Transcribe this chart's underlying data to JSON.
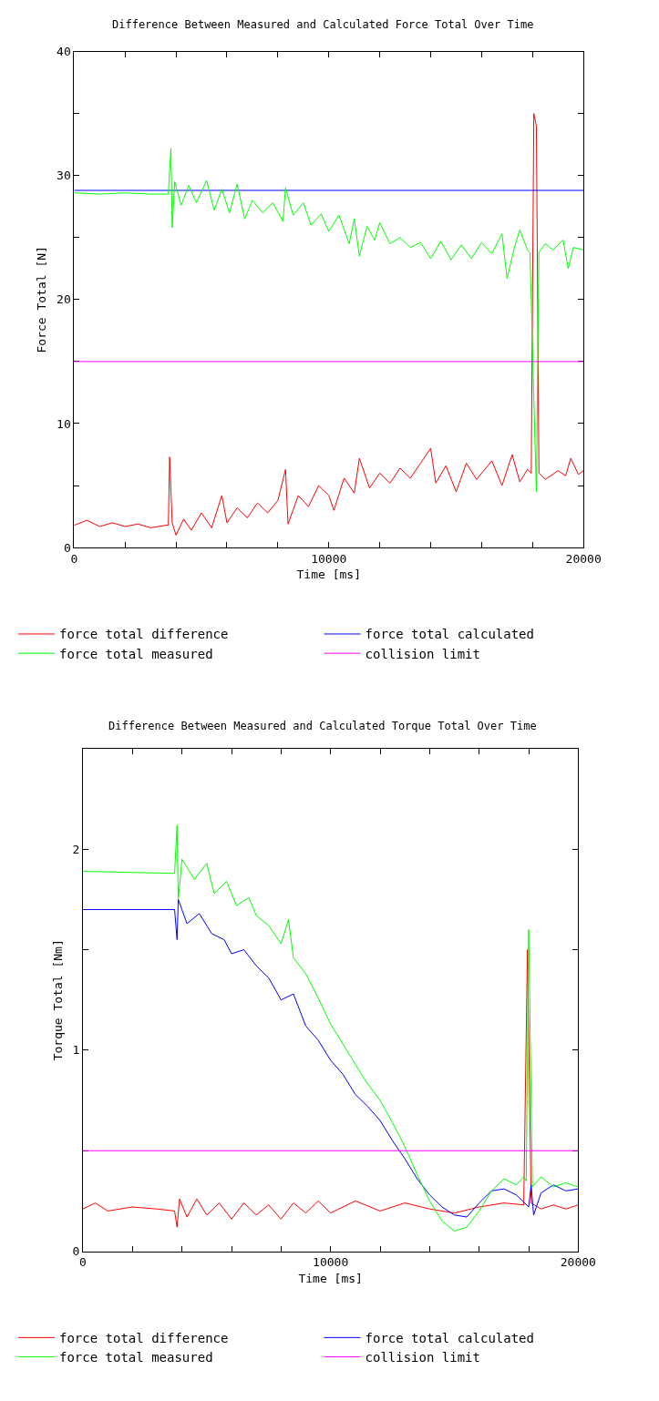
{
  "chart_data": [
    {
      "type": "line",
      "title": "Difference Between Measured and Calculated Force Total Over Time",
      "xlabel": "Time [ms]",
      "ylabel": "Force Total [N]",
      "xlim": [
        0,
        20000
      ],
      "xticks": [
        0,
        {
          "value": 2000,
          "label": null
        },
        {
          "value": 4000,
          "label": null
        },
        {
          "value": 6000,
          "label": null
        },
        {
          "value": 8000,
          "label": null
        },
        10000,
        {
          "value": 12000,
          "label": null
        },
        {
          "value": 14000,
          "label": null
        },
        {
          "value": 16000,
          "label": null
        },
        {
          "value": 18000,
          "label": null
        },
        20000
      ],
      "ylim": [
        0,
        40
      ],
      "yticks": [
        0,
        {
          "value": 5,
          "label": null
        },
        10,
        {
          "value": 15,
          "label": null
        },
        20,
        {
          "value": 25,
          "label": null
        },
        30,
        {
          "value": 35,
          "label": null
        },
        40
      ],
      "legend": "bottom",
      "series": [
        {
          "name": "force total difference",
          "color": "#ff0000",
          "x": [
            0,
            500,
            1000,
            1500,
            2000,
            2500,
            3000,
            3600,
            3700,
            3750,
            3850,
            4000,
            4300,
            4600,
            5000,
            5400,
            5800,
            6000,
            6400,
            6800,
            7200,
            7600,
            8000,
            8300,
            8400,
            8800,
            9200,
            9600,
            10000,
            10200,
            10600,
            11000,
            11200,
            11600,
            12000,
            12400,
            12800,
            13200,
            13600,
            14000,
            14200,
            14600,
            15000,
            15400,
            15800,
            16400,
            16800,
            17200,
            17500,
            17800,
            17950,
            18050,
            18150,
            18250,
            18500,
            19000,
            19300,
            19500,
            19800,
            20000
          ],
          "values": [
            1.8,
            2.2,
            1.7,
            2.0,
            1.7,
            1.9,
            1.6,
            1.8,
            1.8,
            7.3,
            2.0,
            1.0,
            2.3,
            1.4,
            2.8,
            1.6,
            4.2,
            2.0,
            3.2,
            2.4,
            3.6,
            2.8,
            3.8,
            6.3,
            1.9,
            4.2,
            3.3,
            5.0,
            4.2,
            3.0,
            5.6,
            4.4,
            7.2,
            4.8,
            6.0,
            5.2,
            6.4,
            5.6,
            6.8,
            8.0,
            5.2,
            6.6,
            4.5,
            6.8,
            5.5,
            7.0,
            5.0,
            7.5,
            5.3,
            6.3,
            6.0,
            35.0,
            34.0,
            6.0,
            5.5,
            6.2,
            5.8,
            7.2,
            5.9,
            6.2
          ]
        },
        {
          "name": "force total calculated",
          "color": "#0000ff",
          "x": [
            0,
            20000
          ],
          "values": [
            28.8,
            28.8
          ]
        },
        {
          "name": "force total measured",
          "color": "#00ff00",
          "x": [
            0,
            1000,
            2000,
            3000,
            3700,
            3800,
            3850,
            3950,
            4200,
            4500,
            4800,
            5200,
            5500,
            5800,
            6100,
            6400,
            6700,
            7000,
            7400,
            7800,
            8200,
            8300,
            8600,
            9000,
            9300,
            9700,
            10000,
            10400,
            10800,
            11000,
            11200,
            11500,
            11800,
            12000,
            12400,
            12800,
            13200,
            13600,
            14000,
            14400,
            14800,
            15200,
            15600,
            16000,
            16400,
            16800,
            17000,
            17300,
            17500,
            17800,
            17900,
            18050,
            18150,
            18250,
            18500,
            18800,
            19200,
            19400,
            19600,
            20000
          ],
          "values": [
            28.6,
            28.5,
            28.6,
            28.5,
            28.5,
            32.2,
            25.8,
            29.5,
            27.6,
            29.2,
            27.8,
            29.6,
            27.2,
            28.9,
            27.0,
            29.3,
            26.5,
            28.0,
            27.0,
            27.8,
            26.3,
            29.0,
            26.8,
            27.8,
            26.0,
            26.9,
            25.5,
            26.8,
            24.5,
            26.5,
            23.5,
            25.9,
            24.8,
            26.2,
            24.5,
            25.0,
            24.2,
            24.6,
            23.3,
            24.7,
            23.2,
            24.4,
            23.3,
            24.6,
            23.7,
            25.3,
            21.7,
            24.3,
            25.6,
            24.0,
            23.8,
            12.0,
            4.5,
            23.8,
            24.5,
            24.0,
            24.8,
            22.5,
            24.2,
            24.0
          ]
        },
        {
          "name": "collision limit",
          "color": "#ff00ff",
          "x": [
            0,
            20000
          ],
          "values": [
            15,
            15
          ]
        }
      ]
    },
    {
      "type": "line",
      "title": "Difference Between Measured and Calculated Torque Total Over Time",
      "xlabel": "Time [ms]",
      "ylabel": "Torque Total [Nm]",
      "xlim": [
        0,
        20000
      ],
      "xticks": [
        0,
        {
          "value": 2000,
          "label": null
        },
        {
          "value": 4000,
          "label": null
        },
        {
          "value": 6000,
          "label": null
        },
        {
          "value": 8000,
          "label": null
        },
        10000,
        {
          "value": 12000,
          "label": null
        },
        {
          "value": 14000,
          "label": null
        },
        {
          "value": 16000,
          "label": null
        },
        {
          "value": 18000,
          "label": null
        },
        20000
      ],
      "ylim": [
        0,
        2.5
      ],
      "yticks": [
        0,
        {
          "value": 0.5,
          "label": null
        },
        1,
        {
          "value": 1.5,
          "label": null
        },
        2,
        {
          "value": 2.5,
          "label": null
        }
      ],
      "legend": "bottom",
      "series": [
        {
          "name": "force total difference",
          "color": "#ff0000",
          "x": [
            0,
            500,
            1000,
            2000,
            3000,
            3700,
            3800,
            3900,
            4200,
            4600,
            5000,
            5500,
            6000,
            6500,
            7000,
            7500,
            8000,
            8500,
            9000,
            9500,
            10000,
            11000,
            12000,
            13000,
            14000,
            15000,
            16000,
            17000,
            17800,
            17950,
            18100,
            18500,
            19000,
            19500,
            20000
          ],
          "values": [
            0.21,
            0.24,
            0.2,
            0.22,
            0.21,
            0.2,
            0.12,
            0.26,
            0.17,
            0.26,
            0.18,
            0.24,
            0.16,
            0.24,
            0.18,
            0.23,
            0.16,
            0.24,
            0.19,
            0.25,
            0.19,
            0.25,
            0.2,
            0.24,
            0.21,
            0.19,
            0.22,
            0.24,
            0.23,
            1.5,
            0.24,
            0.21,
            0.23,
            0.21,
            0.23
          ]
        },
        {
          "name": "force total calculated",
          "color": "#0000ff",
          "x": [
            0,
            3700,
            3800,
            3850,
            4200,
            4700,
            5200,
            5700,
            6000,
            6500,
            7000,
            7500,
            8000,
            8500,
            9000,
            9500,
            10000,
            10500,
            11000,
            11500,
            12000,
            12500,
            13000,
            13500,
            14000,
            14500,
            15000,
            15500,
            16000,
            16500,
            17000,
            17500,
            18000,
            18100,
            18200,
            18500,
            19000,
            19500,
            20000
          ],
          "values": [
            1.7,
            1.7,
            1.55,
            1.75,
            1.63,
            1.68,
            1.58,
            1.55,
            1.48,
            1.5,
            1.42,
            1.36,
            1.25,
            1.28,
            1.12,
            1.05,
            0.95,
            0.88,
            0.78,
            0.72,
            0.65,
            0.55,
            0.46,
            0.36,
            0.28,
            0.22,
            0.18,
            0.17,
            0.24,
            0.3,
            0.31,
            0.28,
            0.22,
            0.33,
            0.18,
            0.29,
            0.33,
            0.3,
            0.31
          ]
        },
        {
          "name": "force total measured",
          "color": "#00ff00",
          "x": [
            0,
            3700,
            3800,
            3850,
            4000,
            4500,
            5000,
            5300,
            5800,
            6200,
            6700,
            7000,
            7500,
            8000,
            8300,
            8500,
            9000,
            9500,
            10000,
            10500,
            11000,
            11400,
            12000,
            12500,
            13000,
            13500,
            14000,
            14500,
            15000,
            15500,
            16000,
            16500,
            17000,
            17500,
            17800,
            17900,
            18000,
            18150,
            18500,
            19000,
            19500,
            20000
          ],
          "values": [
            1.89,
            1.88,
            2.12,
            1.75,
            1.95,
            1.85,
            1.93,
            1.78,
            1.84,
            1.72,
            1.76,
            1.67,
            1.62,
            1.53,
            1.65,
            1.46,
            1.38,
            1.26,
            1.13,
            1.03,
            0.93,
            0.85,
            0.75,
            0.64,
            0.52,
            0.38,
            0.25,
            0.15,
            0.1,
            0.12,
            0.2,
            0.3,
            0.36,
            0.33,
            0.37,
            0.35,
            1.6,
            0.32,
            0.37,
            0.32,
            0.34,
            0.32
          ]
        },
        {
          "name": "collision limit",
          "color": "#ff00ff",
          "x": [
            0,
            20000
          ],
          "values": [
            0.5,
            0.5
          ]
        }
      ]
    }
  ]
}
